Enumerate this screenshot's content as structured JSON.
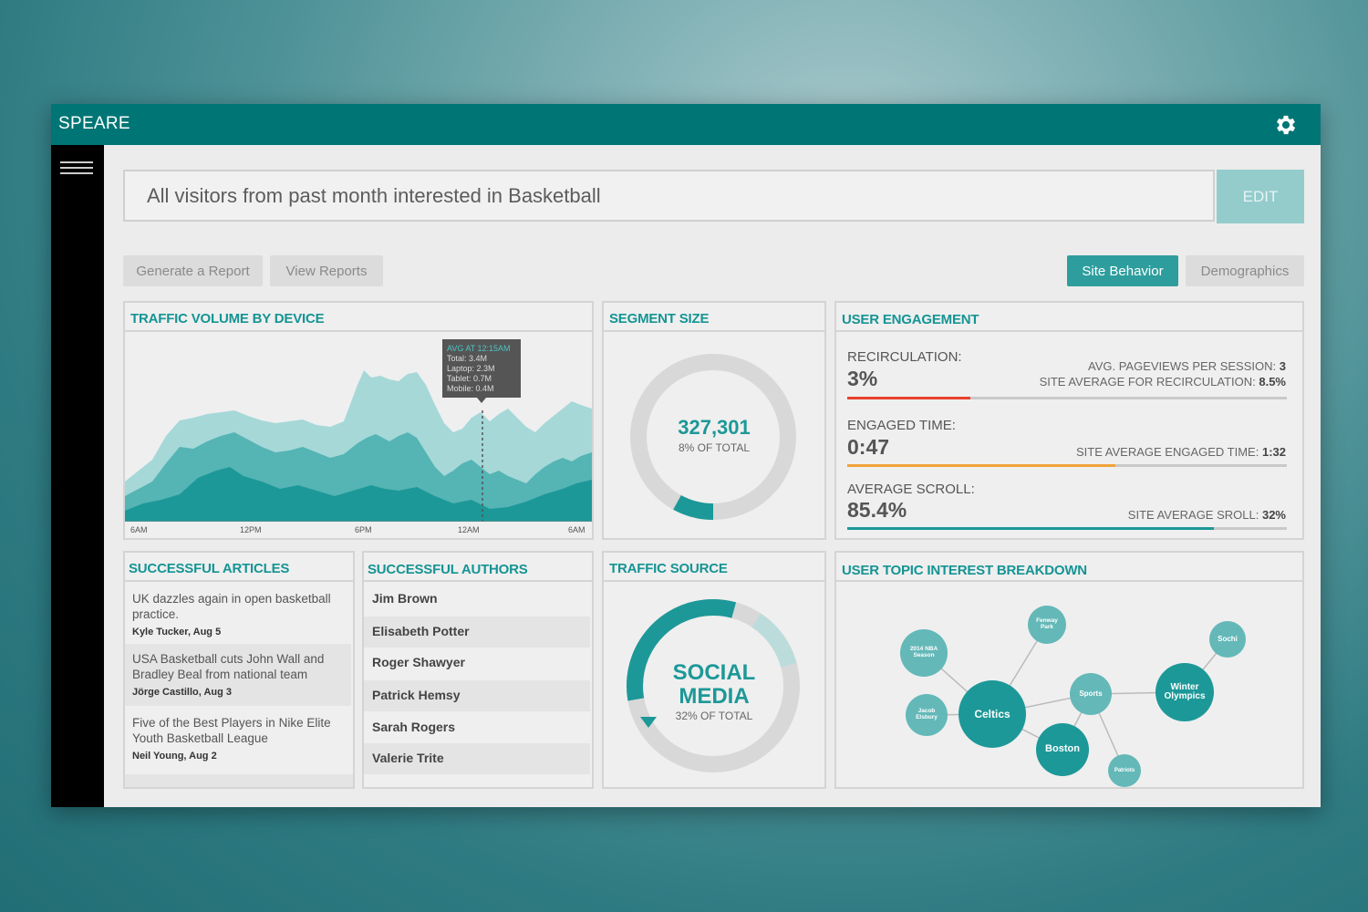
{
  "app": {
    "brand": "SPEARE"
  },
  "query": {
    "text": "All visitors from past month interested in Basketball",
    "edit_label": "EDIT"
  },
  "actions": {
    "generate": "Generate a Report",
    "view": "View Reports"
  },
  "tabs": {
    "site_behavior": "Site Behavior",
    "demographics": "Demographics"
  },
  "colors": {
    "teal_dark": "#007575",
    "teal": "#2e9d9d",
    "teal_light": "#9ed6d6",
    "red": "#e8412c",
    "orange": "#f0a33a"
  },
  "traffic": {
    "title": "TRAFFIC VOLUME BY DEVICE",
    "x_ticks": [
      "6AM",
      "12PM",
      "6PM",
      "12AM",
      "6AM"
    ],
    "tooltip": {
      "title": "AVG AT 12:15AM",
      "lines": [
        "Total: 3.4M",
        "Laptop: 2.3M",
        "Tablet: 0.7M",
        "Mobile: 0.4M"
      ]
    }
  },
  "segment": {
    "title": "SEGMENT SIZE",
    "value": "327,301",
    "sub": "8% OF TOTAL",
    "fraction": 0.08
  },
  "engagement": {
    "title": "USER ENGAGEMENT",
    "recirc": {
      "label": "RECIRCULATION:",
      "value": "3%",
      "right1_label": "AVG. PAGEVIEWS PER SESSION:",
      "right1_value": "3",
      "right2_label": "SITE AVERAGE FOR RECIRCULATION:",
      "right2_value": "8.5%",
      "fill": 0.28
    },
    "engaged": {
      "label": "ENGAGED TIME:",
      "value": "0:47",
      "right_label": "SITE AVERAGE ENGAGED TIME:",
      "right_value": "1:32",
      "fill": 0.61
    },
    "scroll": {
      "label": "AVERAGE SCROLL:",
      "value": "85.4%",
      "right_label": "SITE AVERAGE SROLL:",
      "right_value": "32%",
      "fill": 0.835
    }
  },
  "articles": {
    "title": "SUCCESSFUL ARTICLES",
    "items": [
      {
        "title": "UK dazzles again in open basketball practice.",
        "meta": "Kyle Tucker, Aug 5"
      },
      {
        "title": "USA Basketball cuts John Wall and Bradley Beal from national team",
        "meta": "Jörge Castillo, Aug 3"
      },
      {
        "title": "Five of the Best Players in Nike Elite Youth Basketball League",
        "meta": "Neil Young, Aug 2"
      }
    ]
  },
  "authors": {
    "title": "SUCCESSFUL AUTHORS",
    "items": [
      "Jim Brown",
      "Elisabeth Potter",
      "Roger Shawyer",
      "Patrick Hemsy",
      "Sarah Rogers",
      "Valerie Trite"
    ]
  },
  "source": {
    "title": "TRAFFIC SOURCE",
    "line1": "SOCIAL",
    "line2": "MEDIA",
    "sub": "32% OF TOTAL"
  },
  "topics": {
    "title": "USER TOPIC INTEREST BREAKDOWN",
    "nodes": {
      "nba": "2014 NBA Season",
      "fenway": "Fenway Park",
      "sochi": "Sochi",
      "jacob": "Jacob Elsbury",
      "celtics": "Celtics",
      "sports": "Sports",
      "winter": "Winter Olympics",
      "boston": "Boston",
      "patriots": "Patriots"
    }
  }
}
